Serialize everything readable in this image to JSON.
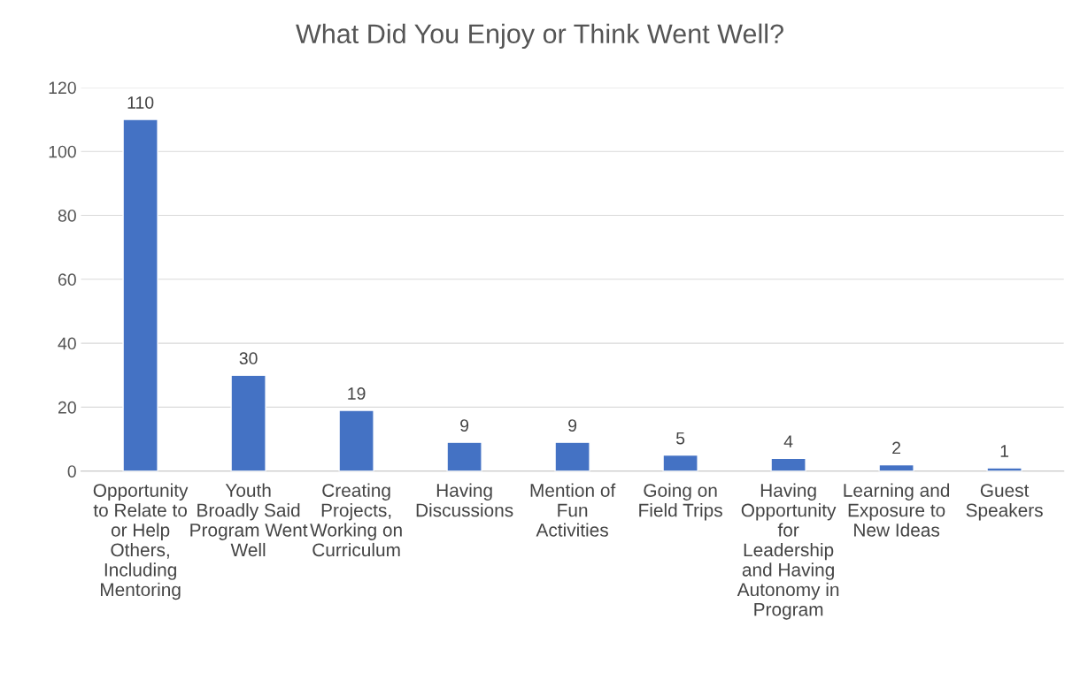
{
  "chart_data": {
    "type": "bar",
    "title": "What Did You Enjoy or Think Went Well?",
    "categories": [
      "Opportunity to Relate to or Help Others, Including Mentoring",
      "Youth Broadly Said Program Went Well",
      "Creating Projects, Working on Curriculum",
      "Having Discussions",
      "Mention of Fun Activities",
      "Going on Field Trips",
      "Having Opportunity for Leadership and Having Autonomy in Program",
      "Learning and Exposure to New Ideas",
      "Guest Speakers"
    ],
    "values": [
      110,
      30,
      19,
      9,
      9,
      5,
      4,
      2,
      1
    ],
    "color": "#4472c4",
    "ylim": [
      0,
      120
    ],
    "yticks": [
      0,
      20,
      40,
      60,
      80,
      100,
      120
    ],
    "grid": "y",
    "data_labels": true,
    "legend": false
  }
}
